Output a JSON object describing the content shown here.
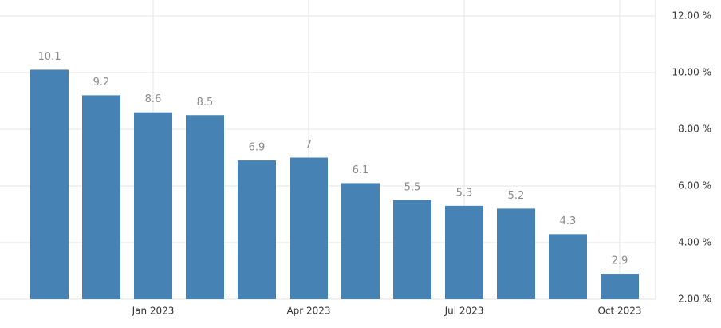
{
  "chart_data": {
    "type": "bar",
    "categories": [
      null,
      null,
      "Jan 2023",
      null,
      null,
      "Apr 2023",
      null,
      null,
      "Jul 2023",
      null,
      null,
      "Oct 2023"
    ],
    "values": [
      10.1,
      9.2,
      8.6,
      8.5,
      6.9,
      7,
      6.1,
      5.5,
      5.3,
      5.2,
      4.3,
      2.9
    ],
    "color": "#4682b4",
    "ylim": [
      2,
      12
    ],
    "yticks": [
      {
        "value": 2,
        "label": "2.00 %"
      },
      {
        "value": 4,
        "label": "4.00 %"
      },
      {
        "value": 6,
        "label": "6.00 %"
      },
      {
        "value": 8,
        "label": "8.00 %"
      },
      {
        "value": 10,
        "label": "10.00 %"
      },
      {
        "value": 12,
        "label": "12.00 %"
      }
    ],
    "grid": true
  }
}
